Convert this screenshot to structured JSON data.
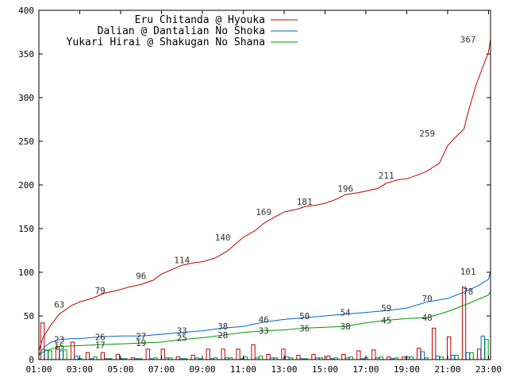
{
  "chart_data": {
    "type": "line",
    "x_tick_labels": [
      "01:00",
      "03:00",
      "05:00",
      "07:00",
      "09:00",
      "11:00",
      "13:00",
      "15:00",
      "17:00",
      "19:00",
      "21:00",
      "23:00"
    ],
    "x_ticks_hours": [
      1,
      3,
      5,
      7,
      9,
      11,
      13,
      15,
      17,
      19,
      21,
      23
    ],
    "xlim_hours": [
      1,
      23.1
    ],
    "y_tick_labels": [
      "0",
      "50",
      "100",
      "150",
      "200",
      "250",
      "300",
      "350",
      "400"
    ],
    "ylim": [
      0,
      400
    ],
    "legend_position": "top-right",
    "series": [
      {
        "name": "Eru Chitanda @ Hyouka",
        "color": "#c00000",
        "cumulative": [
          [
            1.0,
            10
          ],
          [
            1.2,
            25
          ],
          [
            1.6,
            40
          ],
          [
            2.0,
            52
          ],
          [
            2.6,
            62
          ],
          [
            3.0,
            66
          ],
          [
            3.6,
            70
          ],
          [
            4.2,
            76
          ],
          [
            4.8,
            79
          ],
          [
            5.4,
            83
          ],
          [
            6.0,
            86
          ],
          [
            6.6,
            91
          ],
          [
            7.0,
            98
          ],
          [
            7.6,
            104
          ],
          [
            8.0,
            108
          ],
          [
            8.6,
            111
          ],
          [
            9.0,
            112
          ],
          [
            9.6,
            116
          ],
          [
            10.2,
            124
          ],
          [
            10.6,
            132
          ],
          [
            11.0,
            140
          ],
          [
            11.6,
            148
          ],
          [
            12.0,
            156
          ],
          [
            12.6,
            164
          ],
          [
            13.0,
            169
          ],
          [
            13.6,
            172
          ],
          [
            14.0,
            175
          ],
          [
            14.6,
            177
          ],
          [
            15.0,
            179
          ],
          [
            15.6,
            184
          ],
          [
            16.0,
            189
          ],
          [
            16.6,
            191
          ],
          [
            17.0,
            193
          ],
          [
            17.6,
            196
          ],
          [
            18.0,
            202
          ],
          [
            18.6,
            206
          ],
          [
            19.0,
            207
          ],
          [
            19.6,
            212
          ],
          [
            20.0,
            216
          ],
          [
            20.6,
            225
          ],
          [
            21.0,
            245
          ],
          [
            21.4,
            255
          ],
          [
            21.8,
            264
          ],
          [
            22.0,
            283
          ],
          [
            22.4,
            315
          ],
          [
            22.8,
            340
          ],
          [
            23.0,
            352
          ],
          [
            23.1,
            367
          ]
        ],
        "point_labels": [
          [
            2.0,
            63,
            "63"
          ],
          [
            4.0,
            79,
            "79"
          ],
          [
            6.0,
            96,
            "96"
          ],
          [
            8.0,
            114,
            "114"
          ],
          [
            10.0,
            140,
            "140"
          ],
          [
            12.0,
            169,
            "169"
          ],
          [
            14.0,
            181,
            "181"
          ],
          [
            16.0,
            196,
            "196"
          ],
          [
            18.0,
            211,
            "211"
          ],
          [
            20.0,
            259,
            "259"
          ],
          [
            22.0,
            367,
            "367"
          ]
        ],
        "hourly_bars": [
          42,
          15,
          20,
          8,
          8,
          6,
          2,
          12,
          12,
          3,
          5,
          12,
          12,
          12,
          17,
          6,
          12,
          5,
          6,
          4,
          6,
          10,
          11,
          3,
          3,
          13,
          36,
          26,
          83,
          12
        ]
      },
      {
        "name": "Dalian @ Dantalian No Shoka",
        "color": "#0066cc",
        "cumulative": [
          [
            1.0,
            6
          ],
          [
            1.3,
            15
          ],
          [
            1.6,
            20
          ],
          [
            2.0,
            23
          ],
          [
            2.6,
            24
          ],
          [
            3.0,
            24
          ],
          [
            4.0,
            26
          ],
          [
            5.0,
            27
          ],
          [
            6.0,
            27
          ],
          [
            7.0,
            29
          ],
          [
            8.0,
            31
          ],
          [
            9.0,
            33
          ],
          [
            10.0,
            36
          ],
          [
            11.0,
            38
          ],
          [
            12.0,
            43
          ],
          [
            13.0,
            46
          ],
          [
            14.0,
            48
          ],
          [
            15.0,
            50
          ],
          [
            16.0,
            52
          ],
          [
            17.0,
            54
          ],
          [
            18.0,
            56
          ],
          [
            19.0,
            59
          ],
          [
            20.0,
            66
          ],
          [
            21.0,
            70
          ],
          [
            22.0,
            79
          ],
          [
            22.6,
            86
          ],
          [
            23.0,
            92
          ],
          [
            23.1,
            101
          ]
        ],
        "point_labels": [
          [
            2.0,
            23,
            "23"
          ],
          [
            4.0,
            26,
            "26"
          ],
          [
            6.0,
            27,
            "27"
          ],
          [
            8.0,
            33,
            "33"
          ],
          [
            10.0,
            38,
            "38"
          ],
          [
            12.0,
            46,
            "46"
          ],
          [
            14.0,
            50,
            "50"
          ],
          [
            16.0,
            54,
            "54"
          ],
          [
            18.0,
            59,
            "59"
          ],
          [
            20.0,
            70,
            "70"
          ],
          [
            22.0,
            101,
            "101"
          ]
        ],
        "hourly_bars": [
          11,
          10,
          4,
          1,
          1,
          1,
          1,
          1,
          2,
          1,
          2,
          1,
          2,
          1,
          2,
          2,
          3,
          1,
          2,
          1,
          2,
          1,
          2,
          1,
          3,
          9,
          4,
          5,
          8,
          27
        ]
      },
      {
        "name": "Yukari Hirai @ Shakugan No Shana",
        "color": "#009900",
        "cumulative": [
          [
            1.0,
            5
          ],
          [
            1.3,
            10
          ],
          [
            1.6,
            12
          ],
          [
            2.0,
            15
          ],
          [
            3.0,
            16
          ],
          [
            4.0,
            17
          ],
          [
            5.0,
            18
          ],
          [
            6.0,
            19
          ],
          [
            7.0,
            20
          ],
          [
            8.0,
            23
          ],
          [
            9.0,
            25
          ],
          [
            10.0,
            28
          ],
          [
            11.0,
            31
          ],
          [
            12.0,
            33
          ],
          [
            13.0,
            34
          ],
          [
            14.0,
            36
          ],
          [
            15.0,
            37
          ],
          [
            16.0,
            38
          ],
          [
            17.0,
            42
          ],
          [
            18.0,
            45
          ],
          [
            19.0,
            47
          ],
          [
            20.0,
            48
          ],
          [
            21.0,
            55
          ],
          [
            22.0,
            64
          ],
          [
            22.6,
            70
          ],
          [
            23.0,
            74
          ],
          [
            23.1,
            78
          ]
        ],
        "point_labels": [
          [
            2.0,
            15,
            "15"
          ],
          [
            4.0,
            17,
            "17"
          ],
          [
            6.0,
            19,
            "19"
          ],
          [
            8.0,
            25,
            "25"
          ],
          [
            10.0,
            28,
            "28"
          ],
          [
            12.0,
            33,
            "33"
          ],
          [
            14.0,
            36,
            "36"
          ],
          [
            16.0,
            38,
            "38"
          ],
          [
            18.0,
            45,
            "45"
          ],
          [
            20.0,
            48,
            "48"
          ],
          [
            22.0,
            78,
            "78"
          ]
        ],
        "hourly_bars": [
          10,
          11,
          1,
          3,
          1,
          1,
          1,
          2,
          2,
          1,
          1,
          2,
          2,
          3,
          4,
          2,
          2,
          1,
          2,
          2,
          3,
          2,
          3,
          2,
          3,
          2,
          3,
          5,
          8,
          23
        ]
      }
    ]
  }
}
